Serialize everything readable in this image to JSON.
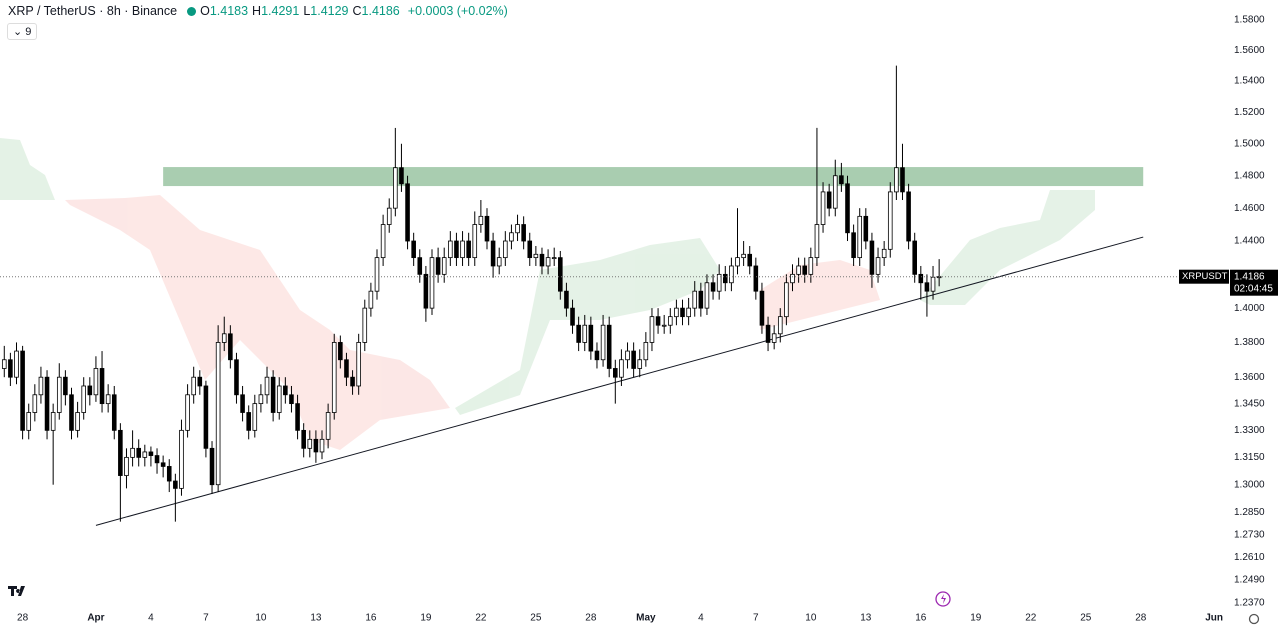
{
  "chart_data": {
    "type": "candlestick",
    "symbol": "XRP / TetherUS · 8h · Binance",
    "ohlc_labels": [
      "O",
      "H",
      "L",
      "C"
    ],
    "change": "+0.0003 (+0.02%)",
    "indicator_count": "9",
    "ticker": "XRPUSDT",
    "countdown": "02:04:45",
    "up_color": "#ffffff",
    "down_color": "#000000",
    "border_color": "#000000",
    "log_scale": true,
    "grid": false,
    "xlim": [
      -0.7,
      191.6
    ],
    "ylim": [
      1.2334,
      1.5933
    ],
    "xticks": [
      {
        "value": 3,
        "label": "28"
      },
      {
        "value": 15,
        "label": "Apr"
      },
      {
        "value": 24,
        "label": "4"
      },
      {
        "value": 33,
        "label": "7"
      },
      {
        "value": 42,
        "label": "10"
      },
      {
        "value": 51,
        "label": "13"
      },
      {
        "value": 60,
        "label": "16"
      },
      {
        "value": 69,
        "label": "19"
      },
      {
        "value": 78,
        "label": "22"
      },
      {
        "value": 87,
        "label": "25"
      },
      {
        "value": 96,
        "label": "28"
      },
      {
        "value": 105,
        "label": "May"
      },
      {
        "value": 114,
        "label": "4"
      },
      {
        "value": 123,
        "label": "7"
      },
      {
        "value": 132,
        "label": "10"
      },
      {
        "value": 141,
        "label": "13"
      },
      {
        "value": 150,
        "label": "16"
      },
      {
        "value": 159,
        "label": "19"
      },
      {
        "value": 168,
        "label": "22"
      },
      {
        "value": 177,
        "label": "25"
      },
      {
        "value": 186,
        "label": "28"
      },
      {
        "value": 198,
        "label": "Jun"
      }
    ],
    "yticks": [
      {
        "value": 1.58,
        "label": "1.5800"
      },
      {
        "value": 1.56,
        "label": "1.5600"
      },
      {
        "value": 1.54,
        "label": "1.5400"
      },
      {
        "value": 1.52,
        "label": "1.5200"
      },
      {
        "value": 1.5,
        "label": "1.5000"
      },
      {
        "value": 1.48,
        "label": "1.4800"
      },
      {
        "value": 1.46,
        "label": "1.4600"
      },
      {
        "value": 1.44,
        "label": "1.4400"
      },
      {
        "value": 1.4,
        "label": "1.4000"
      },
      {
        "value": 1.38,
        "label": "1.3800"
      },
      {
        "value": 1.36,
        "label": "1.3600"
      },
      {
        "value": 1.345,
        "label": "1.3450"
      },
      {
        "value": 1.33,
        "label": "1.3300"
      },
      {
        "value": 1.315,
        "label": "1.3150"
      },
      {
        "value": 1.3,
        "label": "1.3000"
      },
      {
        "value": 1.285,
        "label": "1.2850"
      },
      {
        "value": 1.273,
        "label": "1.2730"
      },
      {
        "value": 1.261,
        "label": "1.2610"
      },
      {
        "value": 1.249,
        "label": "1.2490"
      },
      {
        "value": 1.237,
        "label": "1.2370"
      }
    ],
    "resistance_zone": {
      "x": [
        26,
        186.4
      ],
      "y": [
        1.4736,
        1.4854
      ],
      "color": "#a9cdb0"
    },
    "trendline": {
      "x": [
        15,
        186.4
      ],
      "y": [
        1.278,
        1.4424
      ]
    },
    "candles": [
      [
        1.365,
        1.378,
        1.36,
        1.37
      ],
      [
        1.37,
        1.374,
        1.355,
        1.36
      ],
      [
        1.36,
        1.38,
        1.356,
        1.375
      ],
      [
        1.375,
        1.378,
        1.325,
        1.33
      ],
      [
        1.33,
        1.345,
        1.325,
        1.34
      ],
      [
        1.34,
        1.356,
        1.335,
        1.35
      ],
      [
        1.35,
        1.366,
        1.345,
        1.36
      ],
      [
        1.36,
        1.364,
        1.325,
        1.33
      ],
      [
        1.33,
        1.345,
        1.3,
        1.34
      ],
      [
        1.34,
        1.368,
        1.336,
        1.36
      ],
      [
        1.36,
        1.364,
        1.344,
        1.35
      ],
      [
        1.35,
        1.354,
        1.325,
        1.33
      ],
      [
        1.33,
        1.346,
        1.326,
        1.34
      ],
      [
        1.34,
        1.36,
        1.336,
        1.355
      ],
      [
        1.355,
        1.36,
        1.344,
        1.35
      ],
      [
        1.35,
        1.372,
        1.346,
        1.365
      ],
      [
        1.365,
        1.375,
        1.34,
        1.345
      ],
      [
        1.345,
        1.356,
        1.34,
        1.35
      ],
      [
        1.35,
        1.355,
        1.325,
        1.33
      ],
      [
        1.33,
        1.334,
        1.28,
        1.305
      ],
      [
        1.305,
        1.32,
        1.298,
        1.315
      ],
      [
        1.315,
        1.33,
        1.31,
        1.32
      ],
      [
        1.32,
        1.325,
        1.31,
        1.315
      ],
      [
        1.315,
        1.322,
        1.31,
        1.318
      ],
      [
        1.318,
        1.321,
        1.31,
        1.316
      ],
      [
        1.316,
        1.32,
        1.306,
        1.312
      ],
      [
        1.312,
        1.316,
        1.304,
        1.31
      ],
      [
        1.31,
        1.314,
        1.296,
        1.302
      ],
      [
        1.302,
        1.306,
        1.28,
        1.298
      ],
      [
        1.298,
        1.336,
        1.294,
        1.33
      ],
      [
        1.33,
        1.356,
        1.326,
        1.35
      ],
      [
        1.35,
        1.366,
        1.345,
        1.36
      ],
      [
        1.36,
        1.364,
        1.35,
        1.355
      ],
      [
        1.355,
        1.358,
        1.315,
        1.32
      ],
      [
        1.32,
        1.324,
        1.295,
        1.3
      ],
      [
        1.3,
        1.39,
        1.296,
        1.38
      ],
      [
        1.38,
        1.395,
        1.375,
        1.385
      ],
      [
        1.385,
        1.39,
        1.365,
        1.37
      ],
      [
        1.37,
        1.374,
        1.345,
        1.35
      ],
      [
        1.35,
        1.355,
        1.335,
        1.34
      ],
      [
        1.34,
        1.344,
        1.325,
        1.33
      ],
      [
        1.33,
        1.35,
        1.326,
        1.345
      ],
      [
        1.345,
        1.356,
        1.34,
        1.35
      ],
      [
        1.35,
        1.366,
        1.345,
        1.36
      ],
      [
        1.36,
        1.364,
        1.335,
        1.34
      ],
      [
        1.34,
        1.36,
        1.336,
        1.355
      ],
      [
        1.355,
        1.36,
        1.345,
        1.35
      ],
      [
        1.35,
        1.355,
        1.34,
        1.345
      ],
      [
        1.345,
        1.35,
        1.325,
        1.33
      ],
      [
        1.33,
        1.334,
        1.315,
        1.32
      ],
      [
        1.32,
        1.33,
        1.315,
        1.325
      ],
      [
        1.325,
        1.33,
        1.312,
        1.318
      ],
      [
        1.318,
        1.33,
        1.314,
        1.325
      ],
      [
        1.325,
        1.345,
        1.32,
        1.34
      ],
      [
        1.34,
        1.385,
        1.336,
        1.38
      ],
      [
        1.38,
        1.384,
        1.365,
        1.37
      ],
      [
        1.37,
        1.374,
        1.355,
        1.36
      ],
      [
        1.36,
        1.364,
        1.35,
        1.355
      ],
      [
        1.355,
        1.385,
        1.35,
        1.38
      ],
      [
        1.38,
        1.405,
        1.375,
        1.4
      ],
      [
        1.4,
        1.415,
        1.395,
        1.41
      ],
      [
        1.41,
        1.435,
        1.405,
        1.43
      ],
      [
        1.43,
        1.456,
        1.425,
        1.45
      ],
      [
        1.45,
        1.466,
        1.445,
        1.46
      ],
      [
        1.46,
        1.51,
        1.455,
        1.485
      ],
      [
        1.485,
        1.5,
        1.47,
        1.475
      ],
      [
        1.475,
        1.48,
        1.435,
        1.44
      ],
      [
        1.44,
        1.445,
        1.425,
        1.43
      ],
      [
        1.43,
        1.435,
        1.415,
        1.42
      ],
      [
        1.42,
        1.425,
        1.392,
        1.4
      ],
      [
        1.4,
        1.435,
        1.396,
        1.43
      ],
      [
        1.43,
        1.436,
        1.415,
        1.42
      ],
      [
        1.42,
        1.436,
        1.415,
        1.43
      ],
      [
        1.43,
        1.446,
        1.425,
        1.44
      ],
      [
        1.44,
        1.445,
        1.425,
        1.43
      ],
      [
        1.43,
        1.446,
        1.425,
        1.44
      ],
      [
        1.44,
        1.445,
        1.425,
        1.43
      ],
      [
        1.43,
        1.458,
        1.425,
        1.45
      ],
      [
        1.45,
        1.465,
        1.445,
        1.455
      ],
      [
        1.455,
        1.46,
        1.435,
        1.44
      ],
      [
        1.44,
        1.445,
        1.418,
        1.425
      ],
      [
        1.425,
        1.436,
        1.42,
        1.43
      ],
      [
        1.43,
        1.446,
        1.425,
        1.44
      ],
      [
        1.44,
        1.45,
        1.435,
        1.445
      ],
      [
        1.445,
        1.456,
        1.44,
        1.45
      ],
      [
        1.45,
        1.455,
        1.435,
        1.44
      ],
      [
        1.44,
        1.445,
        1.425,
        1.43
      ],
      [
        1.43,
        1.437,
        1.425,
        1.432
      ],
      [
        1.432,
        1.436,
        1.42,
        1.425
      ],
      [
        1.425,
        1.435,
        1.42,
        1.43
      ],
      [
        1.43,
        1.436,
        1.425,
        1.43
      ],
      [
        1.43,
        1.434,
        1.405,
        1.41
      ],
      [
        1.41,
        1.415,
        1.395,
        1.4
      ],
      [
        1.4,
        1.405,
        1.385,
        1.39
      ],
      [
        1.39,
        1.395,
        1.375,
        1.38
      ],
      [
        1.38,
        1.396,
        1.375,
        1.39
      ],
      [
        1.39,
        1.395,
        1.37,
        1.375
      ],
      [
        1.375,
        1.38,
        1.365,
        1.37
      ],
      [
        1.37,
        1.396,
        1.366,
        1.39
      ],
      [
        1.39,
        1.395,
        1.36,
        1.365
      ],
      [
        1.365,
        1.37,
        1.345,
        1.36
      ],
      [
        1.36,
        1.376,
        1.355,
        1.37
      ],
      [
        1.37,
        1.38,
        1.365,
        1.375
      ],
      [
        1.375,
        1.38,
        1.36,
        1.365
      ],
      [
        1.365,
        1.376,
        1.36,
        1.37
      ],
      [
        1.37,
        1.386,
        1.366,
        1.38
      ],
      [
        1.38,
        1.4,
        1.375,
        1.395
      ],
      [
        1.395,
        1.4,
        1.385,
        1.39
      ],
      [
        1.39,
        1.396,
        1.385,
        1.39
      ],
      [
        1.39,
        1.4,
        1.385,
        1.395
      ],
      [
        1.395,
        1.405,
        1.39,
        1.4
      ],
      [
        1.4,
        1.405,
        1.39,
        1.395
      ],
      [
        1.395,
        1.406,
        1.39,
        1.4
      ],
      [
        1.4,
        1.416,
        1.395,
        1.41
      ],
      [
        1.41,
        1.415,
        1.395,
        1.4
      ],
      [
        1.4,
        1.42,
        1.396,
        1.415
      ],
      [
        1.415,
        1.42,
        1.405,
        1.41
      ],
      [
        1.41,
        1.426,
        1.405,
        1.42
      ],
      [
        1.42,
        1.425,
        1.41,
        1.415
      ],
      [
        1.415,
        1.43,
        1.41,
        1.425
      ],
      [
        1.425,
        1.46,
        1.42,
        1.43
      ],
      [
        1.43,
        1.44,
        1.425,
        1.432
      ],
      [
        1.432,
        1.437,
        1.42,
        1.425
      ],
      [
        1.425,
        1.43,
        1.405,
        1.41
      ],
      [
        1.41,
        1.415,
        1.385,
        1.39
      ],
      [
        1.39,
        1.395,
        1.375,
        1.38
      ],
      [
        1.38,
        1.39,
        1.376,
        1.385
      ],
      [
        1.385,
        1.4,
        1.38,
        1.395
      ],
      [
        1.395,
        1.42,
        1.39,
        1.415
      ],
      [
        1.415,
        1.426,
        1.41,
        1.42
      ],
      [
        1.42,
        1.43,
        1.415,
        1.425
      ],
      [
        1.425,
        1.43,
        1.415,
        1.42
      ],
      [
        1.42,
        1.436,
        1.415,
        1.43
      ],
      [
        1.43,
        1.51,
        1.425,
        1.45
      ],
      [
        1.45,
        1.476,
        1.445,
        1.47
      ],
      [
        1.47,
        1.475,
        1.455,
        1.46
      ],
      [
        1.46,
        1.49,
        1.455,
        1.48
      ],
      [
        1.48,
        1.488,
        1.47,
        1.475
      ],
      [
        1.475,
        1.48,
        1.44,
        1.445
      ],
      [
        1.445,
        1.45,
        1.425,
        1.43
      ],
      [
        1.43,
        1.46,
        1.425,
        1.455
      ],
      [
        1.455,
        1.46,
        1.435,
        1.44
      ],
      [
        1.44,
        1.445,
        1.412,
        1.42
      ],
      [
        1.42,
        1.436,
        1.415,
        1.43
      ],
      [
        1.43,
        1.44,
        1.425,
        1.435
      ],
      [
        1.435,
        1.476,
        1.43,
        1.47
      ],
      [
        1.47,
        1.55,
        1.465,
        1.485
      ],
      [
        1.485,
        1.5,
        1.465,
        1.47
      ],
      [
        1.47,
        1.475,
        1.435,
        1.44
      ],
      [
        1.44,
        1.445,
        1.415,
        1.42
      ],
      [
        1.42,
        1.425,
        1.405,
        1.415
      ],
      [
        1.415,
        1.42,
        1.395,
        1.41
      ],
      [
        1.41,
        1.425,
        1.405,
        1.4183
      ],
      [
        1.4183,
        1.4291,
        1.4129,
        1.4186
      ]
    ]
  }
}
